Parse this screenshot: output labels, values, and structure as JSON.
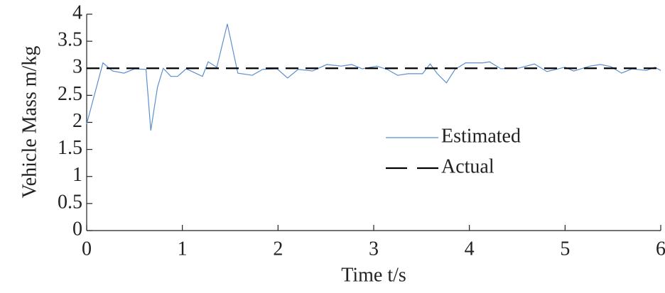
{
  "chart_data": {
    "type": "line",
    "xlabel": "Time t/s",
    "ylabel": "Vehicle Mass m/kg",
    "xlim": [
      0,
      6
    ],
    "ylim": [
      0,
      4
    ],
    "xticks": [
      0,
      1,
      2,
      3,
      4,
      5,
      6
    ],
    "yticks": [
      0,
      0.5,
      1,
      1.5,
      2,
      2.5,
      3,
      3.5,
      4
    ],
    "legend": "center right",
    "series": [
      {
        "name": "Estimated",
        "color": "#5b8fd0",
        "line_style": "solid",
        "x": [
          0,
          0.17,
          0.27,
          0.39,
          0.5,
          0.62,
          0.67,
          0.74,
          0.8,
          0.88,
          0.95,
          1.04,
          1.21,
          1.27,
          1.36,
          1.47,
          1.58,
          1.73,
          1.84,
          1.99,
          2.1,
          2.21,
          2.36,
          2.51,
          2.66,
          2.77,
          2.88,
          3.03,
          3.14,
          3.25,
          3.36,
          3.51,
          3.59,
          3.66,
          3.76,
          3.85,
          3.96,
          4.14,
          4.21,
          4.33,
          4.4,
          4.51,
          4.68,
          4.81,
          5.0,
          5.09,
          5.26,
          5.37,
          5.48,
          5.59,
          5.7,
          5.85,
          5.94,
          6.0
        ],
        "values": [
          1.97,
          3.1,
          2.95,
          2.91,
          2.99,
          2.98,
          1.85,
          2.65,
          3.0,
          2.85,
          2.85,
          2.99,
          2.85,
          3.12,
          3.02,
          3.82,
          2.91,
          2.87,
          2.98,
          2.99,
          2.82,
          2.98,
          2.95,
          3.07,
          3.04,
          3.07,
          2.99,
          3.04,
          2.98,
          2.87,
          2.9,
          2.9,
          3.08,
          2.91,
          2.73,
          2.98,
          3.1,
          3.1,
          3.12,
          2.99,
          3.0,
          3.0,
          3.08,
          2.94,
          3.02,
          2.95,
          3.04,
          3.07,
          3.03,
          2.91,
          2.99,
          2.96,
          3.02,
          2.96
        ]
      },
      {
        "name": "Actual",
        "color": "#000000",
        "line_style": "dashed",
        "x": [
          0,
          6
        ],
        "values": [
          3,
          3
        ]
      }
    ]
  }
}
